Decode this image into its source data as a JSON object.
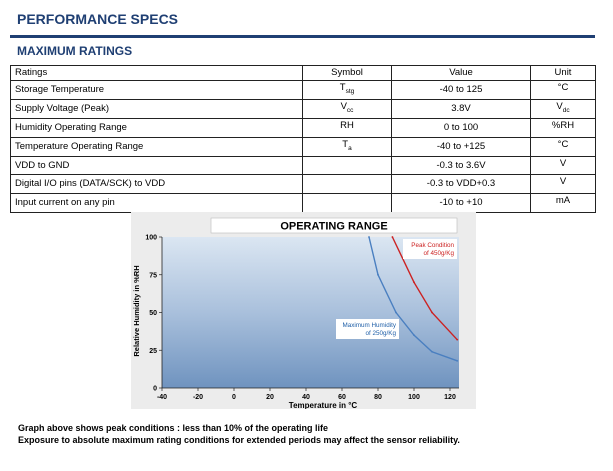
{
  "title": "PERFORMANCE SPECS",
  "subtitle": "MAXIMUM RATINGS",
  "table": {
    "headers": [
      "Ratings",
      "Symbol",
      "Value",
      "Unit"
    ],
    "rows": [
      {
        "rating": "Storage Temperature",
        "symbol": "T",
        "symbol_sub": "stg",
        "value": "-40 to 125",
        "unit": "°C",
        "unit_sub": ""
      },
      {
        "rating": "Supply Voltage (Peak)",
        "symbol": "V",
        "symbol_sub": "cc",
        "value": "3.8V",
        "unit": "V",
        "unit_sub": "dc"
      },
      {
        "rating": "Humidity Operating Range",
        "symbol": "RH",
        "symbol_sub": "",
        "value": "0 to 100",
        "unit": "%RH",
        "unit_sub": ""
      },
      {
        "rating": "Temperature Operating Range",
        "symbol": "T",
        "symbol_sub": "a",
        "value": "-40 to +125",
        "unit": "°C",
        "unit_sub": ""
      },
      {
        "rating": "VDD to GND",
        "symbol": "",
        "symbol_sub": "",
        "value": "-0.3 to 3.6V",
        "unit": "V",
        "unit_sub": ""
      },
      {
        "rating": "Digital I/O pins (DATA/SCK) to VDD",
        "symbol": "",
        "symbol_sub": "",
        "value": "-0.3 to VDD+0.3",
        "unit": "V",
        "unit_sub": ""
      },
      {
        "rating": "Input current on any pin",
        "symbol": "",
        "symbol_sub": "",
        "value": "-10 to +10",
        "unit": "mA",
        "unit_sub": ""
      }
    ]
  },
  "chart_data": {
    "type": "line",
    "title": "OPERATING RANGE",
    "xlabel": "Temperature in °C",
    "ylabel": "Relative Humidity in %RH",
    "xlim": [
      -40,
      125
    ],
    "ylim": [
      0,
      100
    ],
    "x_ticks": [
      -40,
      -20,
      0,
      20,
      40,
      60,
      80,
      100,
      120
    ],
    "y_ticks": [
      0,
      25,
      50,
      75,
      100
    ],
    "grid": false,
    "series": [
      {
        "name": "Maximum Humidity of 250g/Kg",
        "color": "#4a7fc0",
        "points": [
          [
            75,
            100
          ],
          [
            80,
            75
          ],
          [
            90,
            50
          ],
          [
            100,
            35
          ],
          [
            110,
            24
          ],
          [
            124,
            18
          ]
        ]
      },
      {
        "name": "Peak Condition of 450g/Kg",
        "color": "#cc2222",
        "points": [
          [
            88,
            100
          ],
          [
            100,
            70
          ],
          [
            110,
            50
          ],
          [
            124,
            32
          ]
        ]
      }
    ],
    "annotations": [
      {
        "lines": [
          "Peak Condition",
          "of 450g/Kg"
        ],
        "color": "#cc2222"
      },
      {
        "lines": [
          "Maximum Humidity",
          "of 250g/Kg"
        ],
        "color": "#1f5fa8"
      }
    ],
    "legend": "none"
  },
  "notes": {
    "line1": "Graph above shows peak conditions : less than 10% of the operating life",
    "line2": "Exposure to absolute maximum rating conditions for extended periods may affect the sensor reliability."
  }
}
